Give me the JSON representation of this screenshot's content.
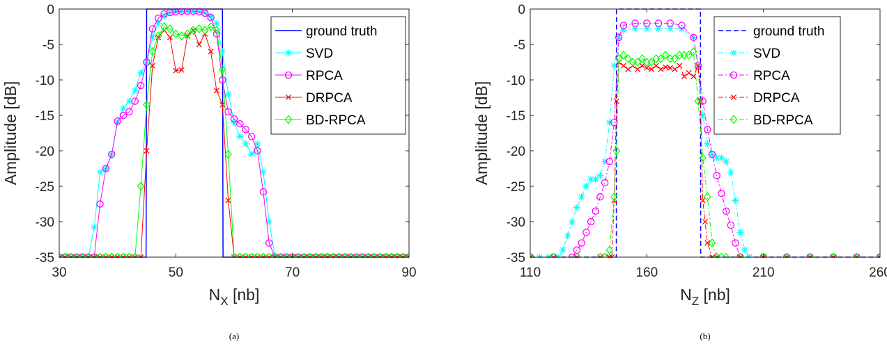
{
  "chart_data": [
    {
      "type": "line",
      "caption": "(a)",
      "xlabel": "N",
      "xlabel_sub": "X",
      "xlabel_unit": " [nb]",
      "ylabel": "Amplitude [dB]",
      "xlim": [
        30,
        90
      ],
      "ylim": [
        -35,
        0
      ],
      "xticks": [
        30,
        50,
        70,
        90
      ],
      "yticks": [
        0,
        -5,
        -10,
        -15,
        -20,
        -25,
        -30,
        -35
      ],
      "grid": false,
      "legend_position": "top-right",
      "series": [
        {
          "name": "ground truth",
          "color": "#0000ff",
          "dash": "solid",
          "marker": "none",
          "x": [
            30,
            44.9,
            45,
            58,
            58.1,
            90
          ],
          "y": [
            -35,
            -35,
            0,
            0,
            -35,
            -35
          ]
        },
        {
          "name": "SVD",
          "color": "#00ffff",
          "dash": "solid",
          "marker": "star",
          "x": [
            30,
            31,
            32,
            33,
            34,
            35,
            36,
            37,
            38,
            39,
            40,
            41,
            42,
            43,
            44,
            45,
            46,
            47,
            48,
            49,
            50,
            51,
            52,
            53,
            54,
            55,
            56,
            57,
            58,
            59,
            60,
            61,
            62,
            63,
            64,
            65,
            66,
            67,
            68,
            69,
            70,
            71,
            72,
            73,
            74,
            75,
            76,
            77,
            78,
            79,
            80,
            81,
            82,
            83,
            84,
            85,
            86,
            87,
            88,
            89,
            90
          ],
          "y": [
            -35,
            -35,
            -35,
            -35,
            -35,
            -35,
            -30.8,
            -23,
            -22.5,
            -20.5,
            -16,
            -14,
            -13,
            -11.5,
            -9,
            -7.5,
            -4,
            -2,
            -1,
            -0.5,
            -0.4,
            -0.3,
            -0.3,
            -0.3,
            -0.4,
            -0.5,
            -1,
            -2,
            -6,
            -12,
            -16,
            -18,
            -19,
            -20.5,
            -19,
            -23,
            -30,
            -34.8,
            -35,
            -35,
            -35,
            -35,
            -35,
            -35,
            -35,
            -35,
            -35,
            -35,
            -35,
            -35,
            -35,
            -35,
            -35,
            -35,
            -35,
            -35,
            -35,
            -35,
            -35,
            -35,
            -35
          ]
        },
        {
          "name": "RPCA",
          "color": "#ff00ff",
          "dash": "solid",
          "marker": "circle",
          "x": [
            30,
            31,
            32,
            33,
            34,
            35,
            36,
            37,
            38,
            39,
            40,
            41,
            42,
            43,
            44,
            45,
            46,
            47,
            48,
            49,
            50,
            51,
            52,
            53,
            54,
            55,
            56,
            57,
            58,
            59,
            60,
            61,
            62,
            63,
            64,
            65,
            66,
            67,
            68,
            69,
            70,
            71,
            72,
            73,
            74,
            75,
            76,
            77,
            78,
            79,
            80,
            81,
            82,
            83,
            84,
            85,
            86,
            87,
            88,
            89,
            90
          ],
          "y": [
            -35,
            -35,
            -35,
            -35,
            -35,
            -35,
            -35,
            -27.5,
            -22.5,
            -20.5,
            -15.8,
            -15,
            -14.5,
            -13,
            -10.8,
            -7.5,
            -2.8,
            -1.3,
            -0.7,
            -0.5,
            -0.4,
            -0.3,
            -0.3,
            -0.3,
            -0.4,
            -0.6,
            -1.2,
            -3.5,
            -10,
            -14.5,
            -15.5,
            -16.2,
            -17,
            -18,
            -20,
            -25.8,
            -33,
            -35,
            -35,
            -35,
            -35,
            -35,
            -35,
            -35,
            -35,
            -35,
            -35,
            -35,
            -35,
            -35,
            -35,
            -35,
            -35,
            -35,
            -35,
            -35,
            -35,
            -35,
            -35,
            -35,
            -35
          ]
        },
        {
          "name": "DRPCA",
          "color": "#ff0000",
          "dash": "solid",
          "marker": "x",
          "x": [
            30,
            31,
            32,
            33,
            34,
            35,
            36,
            37,
            38,
            39,
            40,
            41,
            42,
            43,
            44,
            45,
            46,
            47,
            48,
            49,
            50,
            51,
            52,
            53,
            54,
            55,
            56,
            57,
            58,
            59,
            60,
            61,
            62,
            63,
            64,
            65,
            66,
            67,
            68,
            69,
            70,
            71,
            72,
            73,
            74,
            75,
            76,
            77,
            78,
            79,
            80,
            81,
            82,
            83,
            84,
            85,
            86,
            87,
            88,
            89,
            90
          ],
          "y": [
            -35,
            -35,
            -35,
            -35,
            -35,
            -35,
            -35,
            -35,
            -35,
            -35,
            -35,
            -35,
            -35,
            -35,
            -35,
            -20,
            -8,
            -4,
            -3,
            -4,
            -8.7,
            -8.6,
            -3.8,
            -3,
            -5,
            -3.5,
            -6,
            -11.5,
            -13.5,
            -27,
            -35,
            -35,
            -35,
            -35,
            -35,
            -35,
            -35,
            -35,
            -35,
            -35,
            -35,
            -35,
            -35,
            -35,
            -35,
            -35,
            -35,
            -35,
            -35,
            -35,
            -35,
            -35,
            -35,
            -35,
            -35,
            -35,
            -35,
            -35,
            -35,
            -35,
            -35
          ]
        },
        {
          "name": "BD-RPCA",
          "color": "#00ff00",
          "dash": "solid",
          "marker": "diamond",
          "x": [
            30,
            31,
            32,
            33,
            34,
            35,
            36,
            37,
            38,
            39,
            40,
            41,
            42,
            43,
            44,
            45,
            46,
            47,
            48,
            49,
            50,
            51,
            52,
            53,
            54,
            55,
            56,
            57,
            58,
            59,
            60,
            61,
            62,
            63,
            64,
            65,
            66,
            67,
            68,
            69,
            70,
            71,
            72,
            73,
            74,
            75,
            76,
            77,
            78,
            79,
            80,
            81,
            82,
            83,
            84,
            85,
            86,
            87,
            88,
            89,
            90
          ],
          "y": [
            -35,
            -35,
            -35,
            -35,
            -35,
            -35,
            -35,
            -35,
            -35,
            -35,
            -35,
            -35,
            -35,
            -35,
            -25,
            -13.5,
            -6,
            -3.8,
            -2.5,
            -2.8,
            -3.5,
            -3.8,
            -3.5,
            -3,
            -2.8,
            -3,
            -2.5,
            -3,
            -8.5,
            -20.5,
            -35,
            -35,
            -35,
            -35,
            -35,
            -35,
            -35,
            -35,
            -35,
            -35,
            -35,
            -35,
            -35,
            -35,
            -35,
            -35,
            -35,
            -35,
            -35,
            -35,
            -35,
            -35,
            -35,
            -35,
            -35,
            -35,
            -35,
            -35,
            -35,
            -35,
            -35
          ]
        }
      ]
    },
    {
      "type": "line",
      "caption": "(b)",
      "xlabel": "N",
      "xlabel_sub": "Z",
      "xlabel_unit": " [nb]",
      "ylabel": "Amplitude [dB]",
      "xlim": [
        110,
        260
      ],
      "ylim": [
        -35,
        0
      ],
      "xticks": [
        110,
        160,
        210,
        260
      ],
      "yticks": [
        0,
        -5,
        -10,
        -15,
        -20,
        -25,
        -30,
        -35
      ],
      "grid": false,
      "legend_position": "top-right",
      "series": [
        {
          "name": "ground truth",
          "color": "#0000ff",
          "dash": "dashed",
          "marker": "none",
          "x": [
            110,
            146.9,
            147,
            183,
            183.1,
            260
          ],
          "y": [
            -35,
            -35,
            0,
            0,
            -35,
            -35
          ]
        },
        {
          "name": "SVD",
          "color": "#00ffff",
          "dash": "dashdot",
          "marker": "star",
          "x": [
            110,
            114,
            118,
            122,
            124,
            126,
            128,
            130,
            132,
            134,
            136,
            138,
            140,
            142,
            144,
            146,
            148,
            150,
            155,
            160,
            165,
            170,
            175,
            180,
            182,
            184,
            186,
            188,
            190,
            192,
            194,
            196,
            198,
            200,
            202,
            204,
            210,
            220,
            230,
            240,
            250,
            260
          ],
          "y": [
            -35,
            -35,
            -35,
            -35,
            -34,
            -32,
            -30,
            -28,
            -26.5,
            -25,
            -24,
            -24,
            -23.5,
            -21.5,
            -16,
            -8,
            -4,
            -3,
            -2.8,
            -2.8,
            -2.8,
            -2.8,
            -2.8,
            -4,
            -8,
            -15,
            -19,
            -20.5,
            -21,
            -21,
            -21.5,
            -23,
            -27,
            -31.5,
            -34,
            -35,
            -35,
            -35,
            -35,
            -35,
            -35,
            -35
          ]
        },
        {
          "name": "RPCA",
          "color": "#ff00ff",
          "dash": "dashdot",
          "marker": "circle",
          "x": [
            110,
            120,
            128,
            130,
            132,
            134,
            136,
            138,
            140,
            142,
            144,
            146,
            148,
            150,
            155,
            160,
            165,
            170,
            175,
            180,
            182,
            184,
            186,
            188,
            190,
            192,
            194,
            196,
            198,
            200,
            210,
            220,
            230,
            240,
            250,
            260
          ],
          "y": [
            -35,
            -35,
            -35,
            -34,
            -33,
            -31.5,
            -30,
            -28.5,
            -26.5,
            -24.5,
            -21.5,
            -16,
            -4,
            -2.3,
            -2,
            -2,
            -2,
            -2,
            -2.3,
            -4,
            -8,
            -13,
            -17,
            -20.5,
            -23.5,
            -26,
            -28.5,
            -30.5,
            -33,
            -35,
            -35,
            -35,
            -35,
            -35,
            -35,
            -35
          ]
        },
        {
          "name": "DRPCA",
          "color": "#ff0000",
          "dash": "dashdot",
          "marker": "x",
          "x": [
            110,
            120,
            130,
            140,
            144,
            145,
            146,
            147,
            148,
            150,
            152,
            154,
            156,
            158,
            160,
            162,
            164,
            166,
            168,
            170,
            172,
            174,
            176,
            178,
            180,
            182,
            183,
            184,
            185,
            186,
            188,
            190,
            200,
            210,
            220,
            230,
            240,
            250,
            260
          ],
          "y": [
            -35,
            -35,
            -35,
            -35,
            -35,
            -35,
            -27,
            -13,
            -7.5,
            -8,
            -8.5,
            -8,
            -8.5,
            -8,
            -8.3,
            -8.5,
            -8,
            -8.5,
            -8.2,
            -8.3,
            -8.5,
            -8,
            -9.5,
            -9,
            -9.5,
            -8,
            -13,
            -27,
            -30,
            -33,
            -35,
            -35,
            -35,
            -35,
            -35,
            -35,
            -35,
            -35,
            -35
          ]
        },
        {
          "name": "BD-RPCA",
          "color": "#00ff00",
          "dash": "dashdot",
          "marker": "diamond",
          "x": [
            110,
            120,
            130,
            140,
            142,
            144,
            146,
            147,
            148,
            150,
            152,
            154,
            156,
            158,
            160,
            162,
            164,
            166,
            168,
            170,
            172,
            174,
            176,
            178,
            180,
            182,
            184,
            186,
            188,
            190,
            192,
            194,
            200,
            210,
            220,
            230,
            240,
            250,
            260
          ],
          "y": [
            -35,
            -35,
            -35,
            -35,
            -35,
            -34,
            -26.5,
            -20,
            -7,
            -6.5,
            -7,
            -7.5,
            -7.5,
            -7,
            -7.5,
            -7.5,
            -7,
            -7,
            -6.5,
            -7,
            -7,
            -6.5,
            -6.5,
            -6.5,
            -6,
            -13,
            -21,
            -26.5,
            -33,
            -35,
            -35,
            -35,
            -35,
            -35,
            -35,
            -35,
            -35,
            -35,
            -35
          ]
        }
      ]
    }
  ]
}
